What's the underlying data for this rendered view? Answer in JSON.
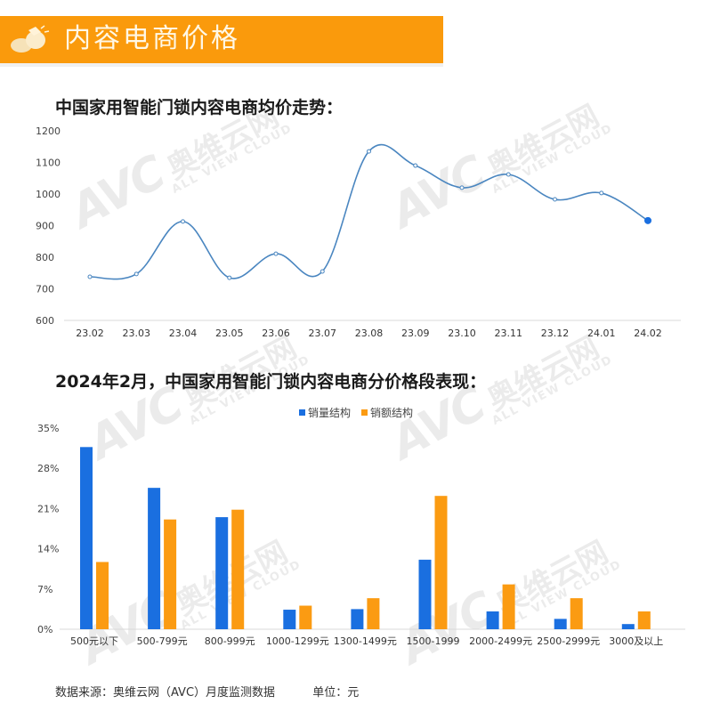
{
  "header": {
    "title": "内容电商价格",
    "icon": "pointing-hand-icon",
    "banner_color": "#fa9a0c"
  },
  "watermark": {
    "logo": "AVC",
    "name_cn": "奥维云网",
    "name_en": "ALL VIEW CLOUD"
  },
  "line_section": {
    "title": "中国家用智能门锁内容电商均价走势："
  },
  "bar_section": {
    "title": "2024年2月，中国家用智能门锁内容电商分价格段表现："
  },
  "legend": {
    "items": [
      {
        "label": "销量结构",
        "color": "#1a6fe0"
      },
      {
        "label": "销额结构",
        "color": "#fb9b12"
      }
    ]
  },
  "footer": {
    "source": "数据来源：奥维云网（AVC）月度监测数据",
    "unit": "单位：元"
  },
  "chart_data": [
    {
      "type": "line",
      "title": "中国家用智能门锁内容电商均价走势",
      "xlabel": "",
      "ylabel": "",
      "categories": [
        "23.02",
        "23.03",
        "23.04",
        "23.05",
        "23.06",
        "23.07",
        "23.08",
        "23.09",
        "23.10",
        "23.11",
        "23.12",
        "24.01",
        "24.02"
      ],
      "series": [
        {
          "name": "均价",
          "values": [
            738,
            747,
            913,
            735,
            811,
            755,
            1135,
            1090,
            1020,
            1062,
            983,
            1003,
            916
          ],
          "color": "#4a86c0"
        }
      ],
      "yticks": [
        "600",
        "700",
        "800",
        "900",
        "1000",
        "1100",
        "1200"
      ],
      "ylim": [
        600,
        1200
      ],
      "grid": false,
      "highlight_last_point": true
    },
    {
      "type": "bar",
      "title": "2024年2月，中国家用智能门锁内容电商分价格段表现",
      "xlabel": "",
      "ylabel": "",
      "categories": [
        "500元以下",
        "500-799元",
        "800-999元",
        "1000-1299元",
        "1300-1499元",
        "1500-1999",
        "2000-2499元",
        "2500-2999元",
        "3000及以上"
      ],
      "series": [
        {
          "name": "销量结构",
          "values": [
            31.7,
            24.6,
            19.5,
            3.4,
            3.5,
            12.1,
            3.1,
            1.8,
            0.9
          ],
          "color": "#1a6fe0"
        },
        {
          "name": "销额结构",
          "values": [
            11.7,
            19.1,
            20.8,
            4.1,
            5.4,
            23.2,
            7.8,
            5.4,
            3.1
          ],
          "color": "#fb9b12"
        }
      ],
      "yticks": [
        "0%",
        "7%",
        "14%",
        "21%",
        "28%",
        "35%"
      ],
      "ylim": [
        0,
        35
      ],
      "unit": "%",
      "legend_position": "top",
      "grid": false
    }
  ]
}
